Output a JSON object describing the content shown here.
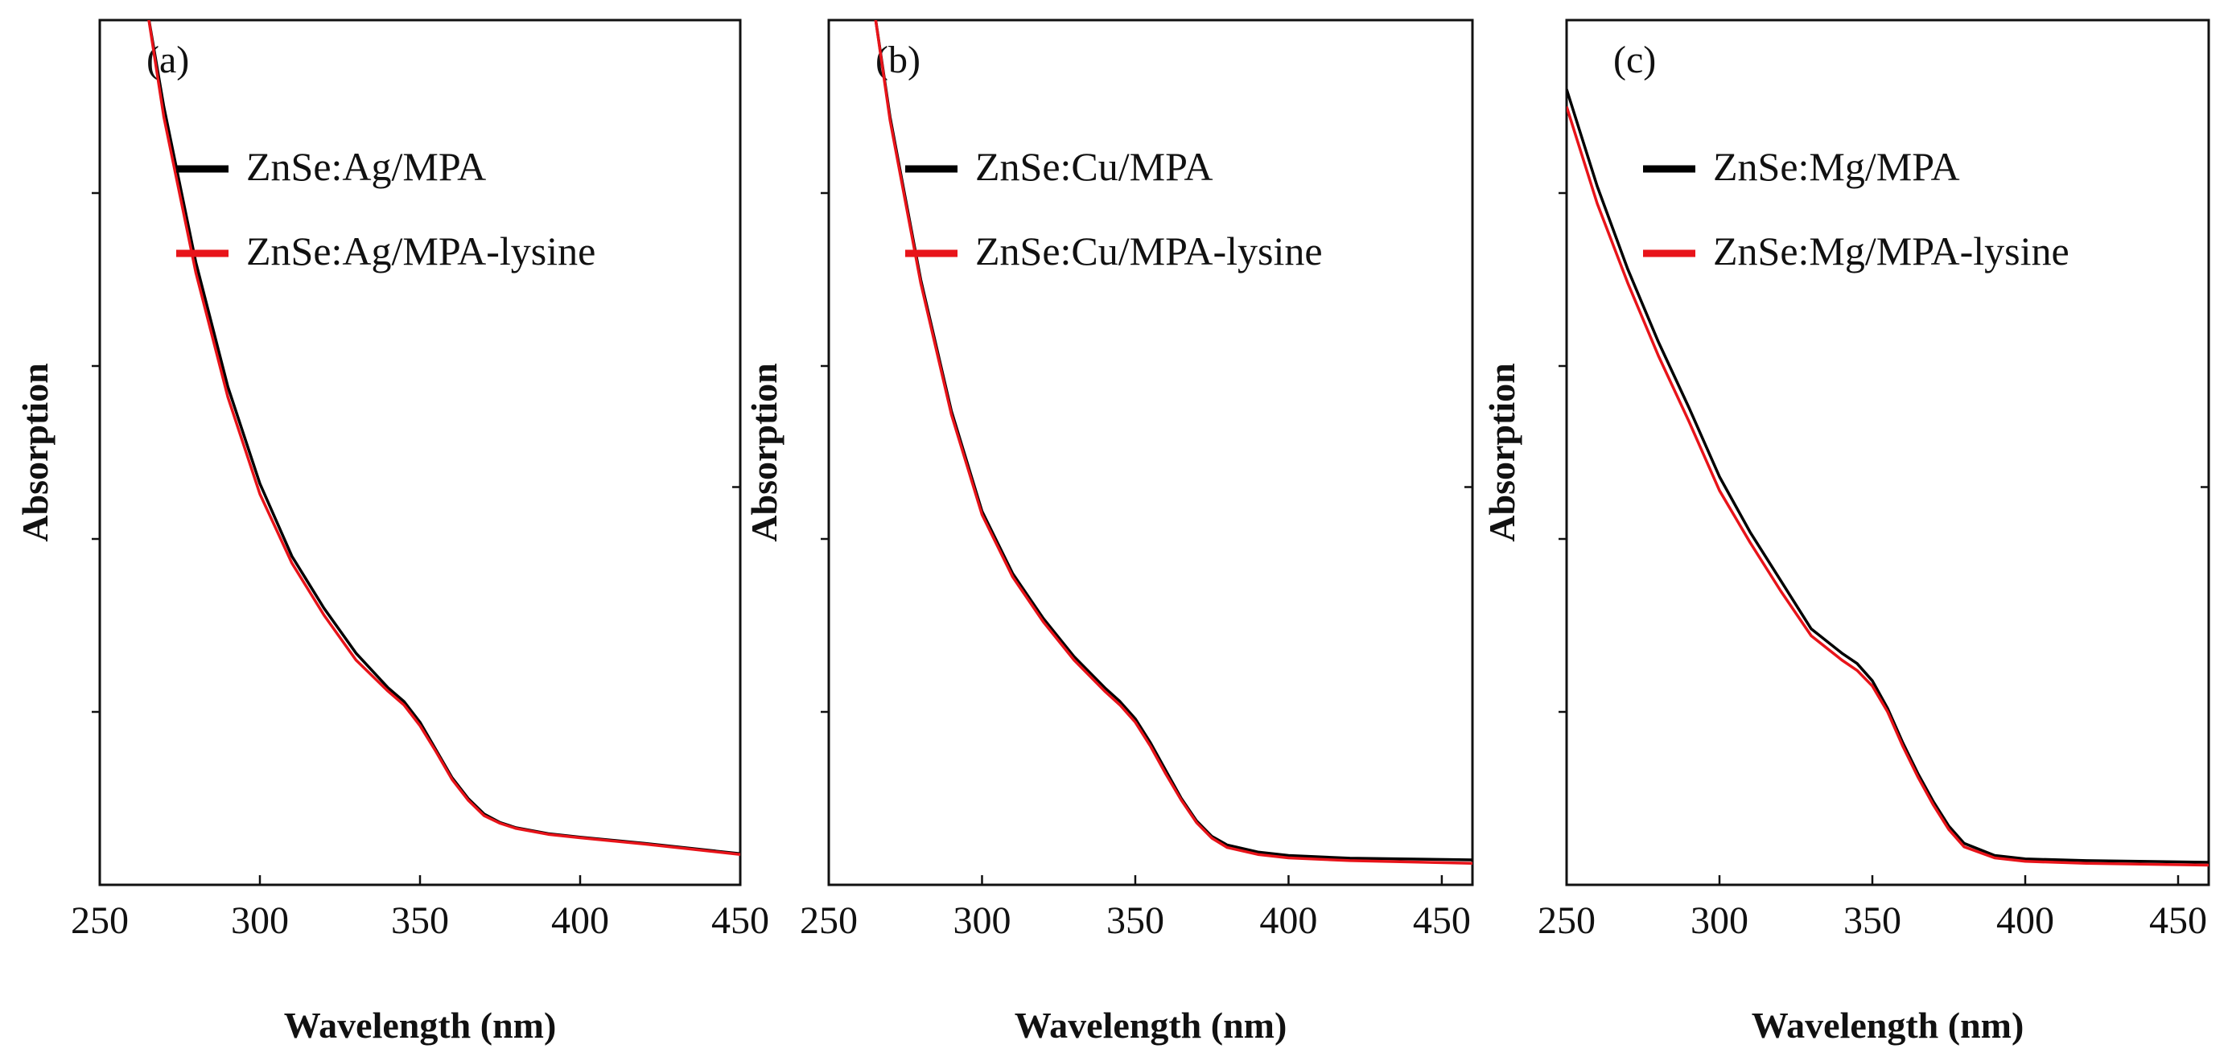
{
  "chart_data": [
    {
      "type": "line",
      "panel_label": "(a)",
      "xlabel": "Wavelength (nm)",
      "ylabel": "Absorption",
      "xlim": [
        250,
        450
      ],
      "ylim": [
        0,
        2.5
      ],
      "x_ticks": [
        250,
        300,
        350,
        400,
        450
      ],
      "x_tick_labels": [
        "250",
        "300",
        "350",
        "400",
        "450"
      ],
      "legend_location": "top-left",
      "series": [
        {
          "name": "ZnSe:Ag/MPA",
          "color": "#000000",
          "x": [
            265,
            270,
            280,
            290,
            300,
            310,
            320,
            330,
            340,
            345,
            350,
            355,
            360,
            365,
            370,
            375,
            380,
            390,
            400,
            420,
            450
          ],
          "y": [
            2.52,
            2.25,
            1.8,
            1.44,
            1.16,
            0.95,
            0.8,
            0.67,
            0.57,
            0.53,
            0.47,
            0.39,
            0.31,
            0.25,
            0.205,
            0.18,
            0.165,
            0.148,
            0.138,
            0.12,
            0.09
          ]
        },
        {
          "name": "ZnSe:Ag/MPA-lysine",
          "color": "#e8141a",
          "x": [
            265,
            270,
            280,
            290,
            300,
            310,
            320,
            330,
            340,
            345,
            350,
            355,
            360,
            365,
            370,
            375,
            380,
            390,
            400,
            420,
            450
          ],
          "y": [
            2.52,
            2.22,
            1.77,
            1.41,
            1.13,
            0.93,
            0.78,
            0.65,
            0.56,
            0.52,
            0.46,
            0.385,
            0.305,
            0.245,
            0.2,
            0.178,
            0.163,
            0.146,
            0.136,
            0.118,
            0.088
          ]
        }
      ]
    },
    {
      "type": "line",
      "panel_label": "(b)",
      "xlabel": "Wavelength (nm)",
      "ylabel": "Absorption",
      "xlim": [
        250,
        460
      ],
      "ylim": [
        0,
        2.5
      ],
      "x_ticks": [
        250,
        300,
        350,
        400,
        450
      ],
      "x_tick_labels": [
        "250",
        "300",
        "350",
        "400",
        "450"
      ],
      "legend_location": "top-left",
      "series": [
        {
          "name": "ZnSe:Cu/MPA",
          "color": "#000000",
          "x": [
            265,
            270,
            280,
            290,
            300,
            310,
            320,
            330,
            340,
            345,
            350,
            355,
            360,
            365,
            370,
            375,
            380,
            390,
            400,
            420,
            460
          ],
          "y": [
            2.52,
            2.22,
            1.75,
            1.37,
            1.08,
            0.9,
            0.77,
            0.66,
            0.57,
            0.53,
            0.48,
            0.41,
            0.33,
            0.25,
            0.185,
            0.14,
            0.115,
            0.095,
            0.085,
            0.077,
            0.072
          ]
        },
        {
          "name": "ZnSe:Cu/MPA-lysine",
          "color": "#e8141a",
          "x": [
            265,
            270,
            280,
            290,
            300,
            310,
            320,
            330,
            340,
            345,
            350,
            355,
            360,
            365,
            370,
            375,
            380,
            390,
            400,
            420,
            460
          ],
          "y": [
            2.52,
            2.21,
            1.74,
            1.36,
            1.07,
            0.89,
            0.76,
            0.65,
            0.56,
            0.52,
            0.47,
            0.4,
            0.32,
            0.245,
            0.18,
            0.135,
            0.108,
            0.088,
            0.078,
            0.07,
            0.062
          ]
        }
      ]
    },
    {
      "type": "line",
      "panel_label": "(c)",
      "xlabel": "Wavelength (nm)",
      "ylabel": "Absorption",
      "xlim": [
        250,
        460
      ],
      "ylim": [
        0,
        2.5
      ],
      "x_ticks": [
        250,
        300,
        350,
        400,
        450
      ],
      "x_tick_labels": [
        "250",
        "300",
        "350",
        "400",
        "450"
      ],
      "legend_location": "top-left",
      "series": [
        {
          "name": "ZnSe:Mg/MPA",
          "color": "#000000",
          "x": [
            250,
            260,
            270,
            280,
            290,
            300,
            310,
            320,
            330,
            340,
            345,
            350,
            355,
            360,
            365,
            370,
            375,
            380,
            390,
            400,
            420,
            460
          ],
          "y": [
            2.3,
            2.02,
            1.78,
            1.57,
            1.38,
            1.18,
            1.02,
            0.88,
            0.74,
            0.67,
            0.64,
            0.59,
            0.51,
            0.41,
            0.32,
            0.24,
            0.17,
            0.12,
            0.085,
            0.075,
            0.07,
            0.065
          ]
        },
        {
          "name": "ZnSe:Mg/MPA-lysine",
          "color": "#e8141a",
          "x": [
            250,
            260,
            270,
            280,
            290,
            300,
            310,
            320,
            330,
            340,
            345,
            350,
            355,
            360,
            365,
            370,
            375,
            380,
            390,
            400,
            420,
            460
          ],
          "y": [
            2.25,
            1.97,
            1.74,
            1.53,
            1.34,
            1.14,
            0.99,
            0.85,
            0.72,
            0.65,
            0.62,
            0.575,
            0.5,
            0.4,
            0.31,
            0.23,
            0.16,
            0.11,
            0.078,
            0.068,
            0.062,
            0.057
          ]
        }
      ]
    }
  ]
}
